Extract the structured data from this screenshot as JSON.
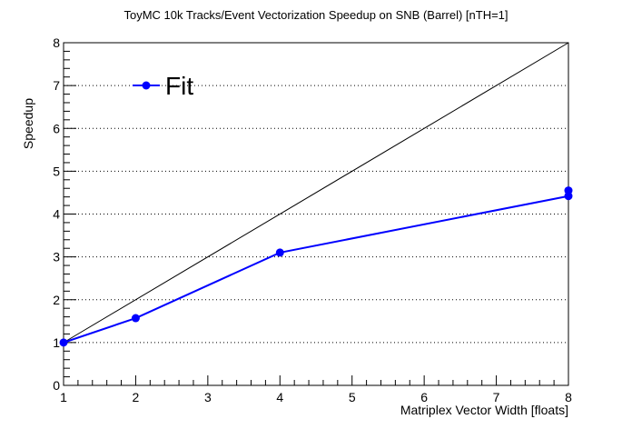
{
  "chart_data": {
    "type": "line",
    "title": "ToyMC 10k Tracks/Event Vectorization Speedup on SNB (Barrel) [nTH=1]",
    "xlabel": "Matriplex Vector Width [floats]",
    "ylabel": "Speedup",
    "xlim": [
      1,
      8
    ],
    "ylim": [
      0,
      8
    ],
    "x_ticks": [
      "1",
      "2",
      "3",
      "4",
      "5",
      "6",
      "7",
      "8"
    ],
    "y_ticks": [
      "0",
      "1",
      "2",
      "3",
      "4",
      "5",
      "6",
      "7",
      "8"
    ],
    "grid": "horizontal dotted",
    "legend_position": "top-left",
    "series": [
      {
        "name": "Fit",
        "color": "#0000ff",
        "x": [
          1,
          2,
          4,
          8
        ],
        "y": [
          1.0,
          1.57,
          3.1,
          4.42
        ],
        "error_high": [
          null,
          null,
          null,
          4.55
        ]
      }
    ],
    "reference_line": {
      "x": [
        1,
        8
      ],
      "y": [
        1,
        8
      ],
      "color": "#000000"
    }
  }
}
